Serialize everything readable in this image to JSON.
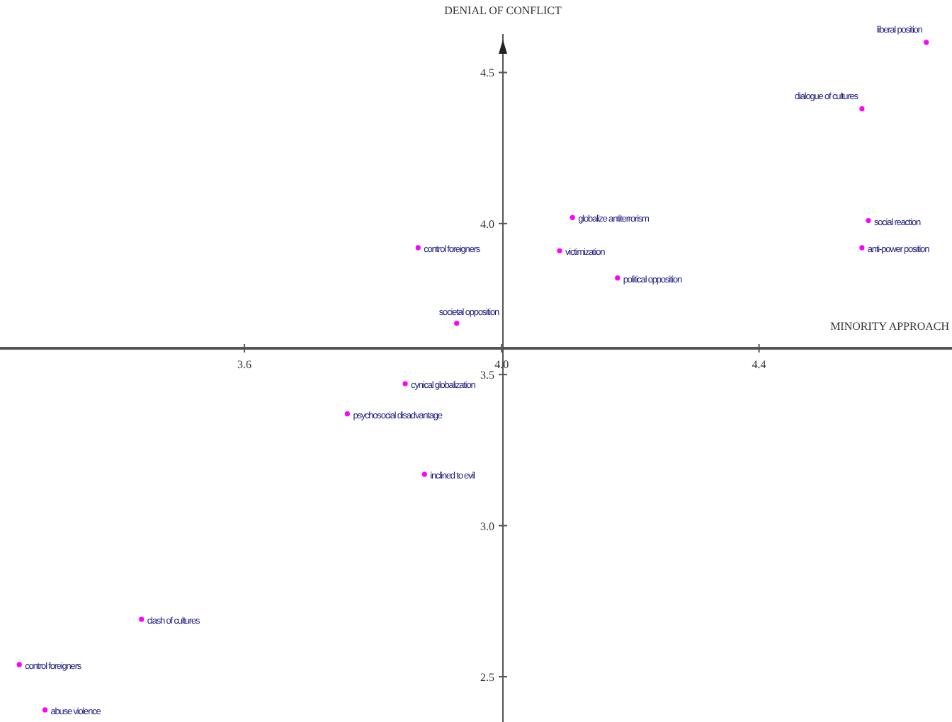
{
  "chart_data": {
    "type": "scatter",
    "xlabel": "MINORITY APPROACH",
    "ylabel": "DENIAL OF CONFLICT",
    "marker": "circle",
    "legend": false,
    "grid": false,
    "xlim": [
      3.22,
      4.7
    ],
    "ylim": [
      2.35,
      4.74
    ],
    "xticks": [
      3.6,
      {
        "value": 4,
        "label": "4.0"
      },
      4.4
    ],
    "yticks": [
      2.5,
      {
        "value": 3,
        "label": "3.0"
      },
      3.5,
      {
        "value": 4,
        "label": "4.0"
      },
      4.5
    ],
    "series": [
      {
        "color": "#ff00ff",
        "x": [
          4.66,
          4.56,
          4.57,
          4.56,
          4.11,
          4.09,
          4.18,
          3.87,
          3.93,
          3.85,
          3.76,
          3.88,
          3.44,
          3.25,
          3.29
        ],
        "values": [
          4.6,
          4.38,
          4.01,
          3.92,
          4.02,
          3.91,
          3.82,
          3.92,
          3.67,
          3.47,
          3.37,
          3.17,
          2.69,
          2.54,
          2.39
        ]
      }
    ],
    "annotations": [
      {
        "text": "liberal position",
        "x": 4.66,
        "y": 4.6
      },
      {
        "text": "dialogue of cultures",
        "x": 4.56,
        "y": 4.38
      },
      {
        "text": "social reaction",
        "x": 4.57,
        "y": 4.01
      },
      {
        "text": "anti-power position",
        "x": 4.56,
        "y": 3.92
      },
      {
        "text": "globalize antiterrorism",
        "x": 4.11,
        "y": 4.02
      },
      {
        "text": "victimization",
        "x": 4.09,
        "y": 3.91
      },
      {
        "text": "political opposition",
        "x": 4.18,
        "y": 3.82
      },
      {
        "text": "control foreigners",
        "x": 3.87,
        "y": 3.92
      },
      {
        "text": "societal opposition",
        "x": 3.93,
        "y": 3.67
      },
      {
        "text": "cynical globalization",
        "x": 3.85,
        "y": 3.47
      },
      {
        "text": "psychosocial disadvantage",
        "x": 3.76,
        "y": 3.37
      },
      {
        "text": "inclined to evil",
        "x": 3.88,
        "y": 3.17
      },
      {
        "text": "clash of cultures",
        "x": 3.44,
        "y": 2.69
      },
      {
        "text": "control foreigners",
        "x": 3.25,
        "y": 2.54
      },
      {
        "text": "abuse violence",
        "x": 3.29,
        "y": 2.39
      }
    ]
  }
}
